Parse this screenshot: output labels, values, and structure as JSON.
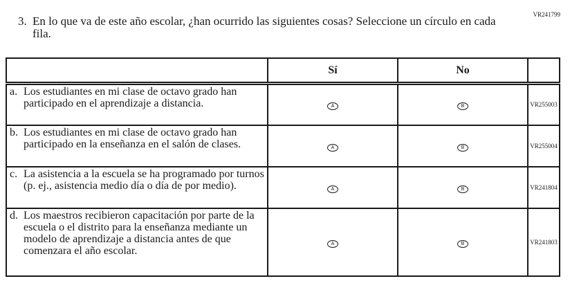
{
  "question_code": "VR241799",
  "question_number": "3.",
  "question_text": "En lo que va de este año escolar, ¿han ocurrido las siguientes cosas? Seleccione un círculo en cada fila.",
  "columns": {
    "yes": "Sí",
    "no": "No"
  },
  "options": {
    "a": "A",
    "b": "B"
  },
  "rows": [
    {
      "letter": "a.",
      "text": "Los estudiantes en mi clase de octavo grado han participado en el aprendizaje a distancia.",
      "code": "VR255003"
    },
    {
      "letter": "b.",
      "text": "Los estudiantes en mi clase de octavo grado han participado en la enseñanza en el salón de clases.",
      "code": "VR255004"
    },
    {
      "letter": "c.",
      "text": "La asistencia a la escuela se ha programado por turnos (p. ej., asistencia medio día o día de por medio).",
      "code": "VR241804"
    },
    {
      "letter": "d.",
      "text": "Los maestros recibieron capacitación por parte de la escuela o el distrito para la enseñanza mediante un modelo de aprendizaje a distancia antes de que comenzara el año escolar.",
      "code": "VR241803"
    }
  ]
}
